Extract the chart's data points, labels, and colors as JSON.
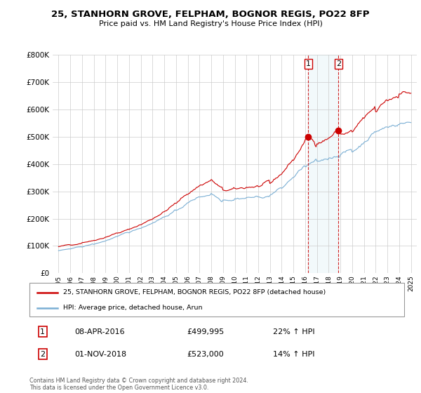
{
  "title": "25, STANHORN GROVE, FELPHAM, BOGNOR REGIS, PO22 8FP",
  "subtitle": "Price paid vs. HM Land Registry's House Price Index (HPI)",
  "legend_line1": "25, STANHORN GROVE, FELPHAM, BOGNOR REGIS, PO22 8FP (detached house)",
  "legend_line2": "HPI: Average price, detached house, Arun",
  "table_row1": [
    "1",
    "08-APR-2016",
    "£499,995",
    "22% ↑ HPI"
  ],
  "table_row2": [
    "2",
    "01-NOV-2018",
    "£523,000",
    "14% ↑ HPI"
  ],
  "footnote": "Contains HM Land Registry data © Crown copyright and database right 2024.\nThis data is licensed under the Open Government Licence v3.0.",
  "red_color": "#cc0000",
  "blue_color": "#7bafd4",
  "marker1_x": 2016.27,
  "marker2_x": 2018.83,
  "marker1_value": 499995,
  "marker2_value": 523000,
  "ylim": [
    0,
    800000
  ],
  "yticks": [
    0,
    100000,
    200000,
    300000,
    400000,
    500000,
    600000,
    700000,
    800000
  ],
  "xlim": [
    1994.5,
    2025.5
  ],
  "xtick_years": [
    1995,
    1996,
    1997,
    1998,
    1999,
    2000,
    2001,
    2002,
    2003,
    2004,
    2005,
    2006,
    2007,
    2008,
    2009,
    2010,
    2011,
    2012,
    2013,
    2014,
    2015,
    2016,
    2017,
    2018,
    2019,
    2020,
    2021,
    2022,
    2023,
    2024,
    2025
  ]
}
